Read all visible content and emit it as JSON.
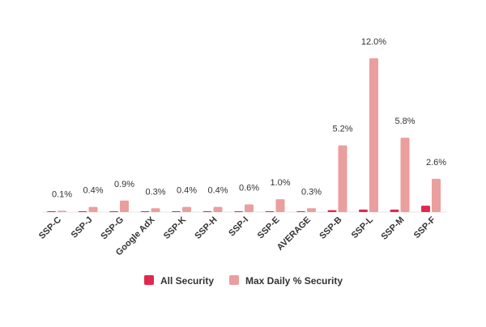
{
  "chart_data": {
    "type": "bar",
    "categories": [
      "SSP-C",
      "SSP-J",
      "SSP-G",
      "Google AdX",
      "SSP-K",
      "SSP-H",
      "SSP-I",
      "SSP-E",
      "AVERAGE",
      "SSP-B",
      "SSP-L",
      "SSP-M",
      "SSP-F"
    ],
    "series": [
      {
        "name": "All Security",
        "color": "#e0294f",
        "values": [
          0.0,
          0.0,
          0.0,
          0.0,
          0.0,
          0.0,
          0.05,
          0.05,
          0.05,
          0.15,
          0.2,
          0.2,
          0.5
        ]
      },
      {
        "name": "Max Daily % Security",
        "color": "#eb9e9e",
        "values": [
          0.1,
          0.4,
          0.9,
          0.3,
          0.4,
          0.4,
          0.6,
          1.0,
          0.3,
          5.2,
          12.0,
          5.8,
          2.6
        ]
      }
    ],
    "data_labels": [
      "0.1%",
      "0.4%",
      "0.9%",
      "0.3%",
      "0.4%",
      "0.4%",
      "0.6%",
      "1.0%",
      "0.3%",
      "5.2%",
      "12.0%",
      "5.8%",
      "2.6%"
    ],
    "title": "",
    "xlabel": "",
    "ylabel": "",
    "ylim": [
      0,
      12
    ],
    "grid": false,
    "legend_position": "bottom-center"
  }
}
